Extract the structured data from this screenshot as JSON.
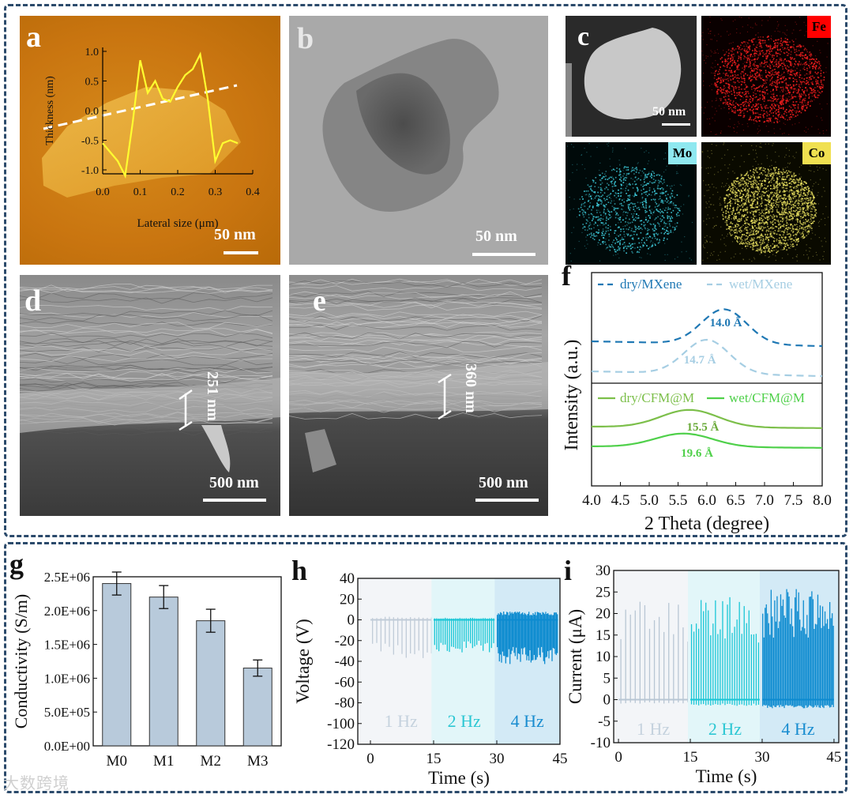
{
  "panels": {
    "a": {
      "label": "a",
      "y_axis_title": "Thickness (nm)",
      "x_axis_title": "Lateral size (μm)",
      "y_ticks": [
        "1.0",
        "0.5",
        "0.0",
        "-0.5",
        "-1.0"
      ],
      "x_ticks": [
        "0.0",
        "0.1",
        "0.2",
        "0.3",
        "0.4"
      ],
      "scale_bar": "50 nm",
      "height_profile": {
        "x_um": [
          0.0,
          0.02,
          0.04,
          0.06,
          0.08,
          0.1,
          0.12,
          0.14,
          0.16,
          0.18,
          0.2,
          0.22,
          0.24,
          0.26,
          0.28,
          0.3,
          0.32,
          0.34,
          0.36
        ],
        "thickness_nm": [
          -0.55,
          -0.7,
          -0.85,
          -1.1,
          -0.2,
          0.85,
          0.3,
          0.5,
          0.2,
          0.15,
          0.4,
          0.6,
          0.7,
          0.95,
          0.2,
          -0.85,
          -0.55,
          -0.5,
          -0.55
        ]
      }
    },
    "b": {
      "label": "b",
      "scale_bar": "50 nm"
    },
    "c": {
      "label": "c",
      "scale_bar": "50 nm",
      "maps": [
        {
          "element": "Fe",
          "color": "#ff2020",
          "label_bg": "#ff0000"
        },
        {
          "element": "Mo",
          "color": "#3fd0e0",
          "label_bg": "#8fe8f0"
        },
        {
          "element": "Co",
          "color": "#e8e060",
          "label_bg": "#f0e050"
        }
      ]
    },
    "d": {
      "label": "d",
      "scale_bar": "500 nm",
      "thickness": "251 nm"
    },
    "e": {
      "label": "e",
      "scale_bar": "500 nm",
      "thickness": "360 nm"
    }
  },
  "chart_data": [
    {
      "id": "f",
      "label": "f",
      "type": "line",
      "xlabel": "2 Theta (degree)",
      "ylabel": "Intensity (a.u.)",
      "xlim": [
        4.0,
        8.0
      ],
      "x_ticks": [
        "4.0",
        "4.5",
        "5.0",
        "5.5",
        "6.0",
        "6.5",
        "7.0",
        "7.5",
        "8.0"
      ],
      "series": [
        {
          "name": "dry/MXene",
          "color": "#1f78b4",
          "dashed": true,
          "peak_x": 6.3,
          "annotation": "14.0 Å",
          "annotation_color": "#1f78b4"
        },
        {
          "name": "wet/MXene",
          "color": "#a6cee3",
          "dashed": true,
          "peak_x": 6.0,
          "annotation": "14.7 Å",
          "annotation_color": "#a6cee3"
        },
        {
          "name": "dry/CFM@M",
          "color": "#7cbf4a",
          "dashed": false,
          "peak_x": 5.7,
          "annotation": "15.5 Å",
          "annotation_color": "#6aaa3a"
        },
        {
          "name": "wet/CFM@M",
          "color": "#4fd04a",
          "dashed": false,
          "peak_x": 5.6,
          "annotation": "19.6 Å",
          "annotation_color": "#4fd04a"
        }
      ]
    },
    {
      "id": "g",
      "label": "g",
      "type": "bar",
      "ylabel": "Conductivity (S/m)",
      "categories": [
        "M0",
        "M1",
        "M2",
        "M3"
      ],
      "values": [
        2400000,
        2200000,
        1850000,
        1150000
      ],
      "errors": [
        170000,
        170000,
        170000,
        120000
      ],
      "ylim": [
        0,
        2500000
      ],
      "y_ticks": [
        "0.0E+00",
        "5.0E+05",
        "1.0E+06",
        "1.5E+06",
        "2.0E+06",
        "2.5E+06"
      ],
      "bar_color": "#b8cadb"
    },
    {
      "id": "h",
      "label": "h",
      "type": "line",
      "xlabel": "Time (s)",
      "ylabel": "Voltage (V)",
      "xlim": [
        -3,
        45
      ],
      "ylim": [
        -120,
        40
      ],
      "x_ticks": [
        "0",
        "15",
        "30",
        "45"
      ],
      "y_ticks": [
        "40",
        "20",
        "0",
        "-20",
        "-40",
        "-60",
        "-80",
        "-100",
        "-120"
      ],
      "segments": [
        {
          "label": "1 Hz",
          "t_start": 0,
          "t_end": 14.5,
          "freq_hz": 1,
          "baseline": 0,
          "high": 3,
          "low": -37,
          "color": "#c0ccd8",
          "label_color": "#c5d2de",
          "shade": "#f3f5f8"
        },
        {
          "label": "2 Hz",
          "t_start": 15,
          "t_end": 29.5,
          "freq_hz": 2,
          "baseline": 0,
          "high": 2,
          "low": -32,
          "color": "#1ac6d6",
          "label_color": "#2cc7d3",
          "shade": "#e2f6f9"
        },
        {
          "label": "4 Hz",
          "t_start": 30,
          "t_end": 44.5,
          "freq_hz": 4,
          "baseline": 0,
          "high": 8,
          "low": -43,
          "color": "#0d8bd0",
          "label_color": "#1a8dd0",
          "shade": "#d3eaf6"
        }
      ]
    },
    {
      "id": "i",
      "label": "i",
      "type": "line",
      "xlabel": "Time (s)",
      "ylabel": "Current (μA)",
      "xlim": [
        -1,
        46
      ],
      "ylim": [
        -10,
        30
      ],
      "x_ticks": [
        "0",
        "15",
        "30",
        "45"
      ],
      "y_ticks": [
        "30",
        "25",
        "20",
        "15",
        "10",
        "5",
        "0",
        "-5",
        "-10"
      ],
      "segments": [
        {
          "label": "1 Hz",
          "t_start": 0,
          "t_end": 14.5,
          "freq_hz": 1,
          "baseline": 0,
          "high": 24,
          "low": -1,
          "color": "#b8c6d4",
          "label_color": "#c5d2de",
          "shade": "#f3f5f8"
        },
        {
          "label": "2 Hz",
          "t_start": 15,
          "t_end": 29.5,
          "freq_hz": 2,
          "baseline": 0,
          "high": 24,
          "low": -1.5,
          "color": "#1ac6d6",
          "label_color": "#2cc7d3",
          "shade": "#e2f6f9"
        },
        {
          "label": "4 Hz",
          "t_start": 30,
          "t_end": 45,
          "freq_hz": 4,
          "baseline": 0,
          "high": 26,
          "low": -2,
          "color": "#0d8bd0",
          "label_color": "#1a8dd0",
          "shade": "#d3eaf6"
        }
      ]
    }
  ],
  "watermark": "大数跨境"
}
